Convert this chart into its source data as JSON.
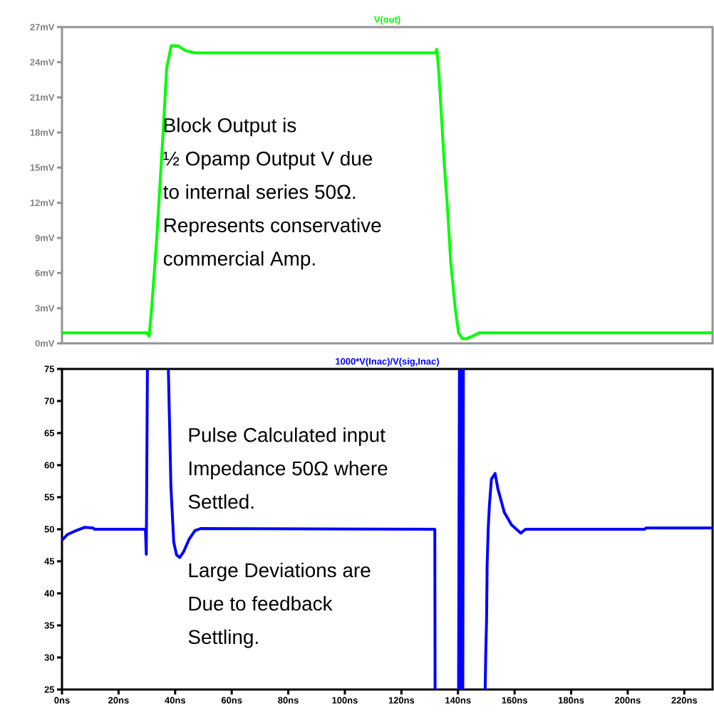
{
  "chart_data": [
    {
      "type": "line",
      "title": "V(out)",
      "xlim": [
        0,
        230
      ],
      "ylim": [
        0,
        27
      ],
      "tick_labels": "y",
      "yticks": [
        {
          "value": 0,
          "label": "0mV"
        },
        {
          "value": 3,
          "label": "3mV"
        },
        {
          "value": 6,
          "label": "6mV"
        },
        {
          "value": 9,
          "label": "9mV"
        },
        {
          "value": 12,
          "label": "12mV"
        },
        {
          "value": 15,
          "label": "15mV"
        },
        {
          "value": 18,
          "label": "18mV"
        },
        {
          "value": 21,
          "label": "21mV"
        },
        {
          "value": 24,
          "label": "24mV"
        },
        {
          "value": 27,
          "label": "27mV"
        }
      ],
      "series": [
        {
          "color": "#00ff00",
          "x": [
            0,
            30,
            30.8,
            31.7,
            33.5,
            35.5,
            37,
            38.6,
            41,
            43.6,
            46.9,
            132,
            132.5,
            133.2,
            135.2,
            136.4,
            137.4,
            139,
            140.2,
            141.5,
            143,
            145,
            147.5,
            230
          ],
          "values": [
            0.9,
            0.9,
            0.6,
            3,
            9,
            17,
            23.5,
            25.4,
            25.4,
            25,
            24.8,
            24.8,
            25.1,
            23.2,
            15.1,
            11.1,
            7,
            3,
            0.9,
            0.4,
            0.4,
            0.6,
            0.9,
            0.9
          ]
        }
      ],
      "annotations": [
        "Block Output is",
        "½ Opamp Output V due",
        "to internal series 50Ω.",
        "Represents conservative",
        "commercial Amp."
      ]
    },
    {
      "type": "line",
      "title": "1000*V(Inac)/V(sig,Inac)",
      "xlim": [
        0,
        230
      ],
      "ylim": [
        25,
        75
      ],
      "xticks": [
        {
          "value": 0,
          "label": "0ns"
        },
        {
          "value": 20,
          "label": "20ns"
        },
        {
          "value": 40,
          "label": "40ns"
        },
        {
          "value": 60,
          "label": "60ns"
        },
        {
          "value": 80,
          "label": "80ns"
        },
        {
          "value": 100,
          "label": "100ns"
        },
        {
          "value": 120,
          "label": "120ns"
        },
        {
          "value": 140,
          "label": "140ns"
        },
        {
          "value": 160,
          "label": "160ns"
        },
        {
          "value": 180,
          "label": "180ns"
        },
        {
          "value": 200,
          "label": "200ns"
        },
        {
          "value": 220,
          "label": "220ns"
        }
      ],
      "yticks": [
        25,
        30,
        35,
        40,
        45,
        50,
        55,
        60,
        65,
        70,
        75
      ],
      "series": [
        {
          "color": "#0000ff",
          "x": [
            0,
            2,
            5,
            8,
            11,
            11.5,
            29.5,
            29.8,
            30.2,
            30.4,
            37.6,
            38,
            38.5,
            39.5,
            40.5,
            41.6,
            43,
            45,
            47,
            49,
            131.8,
            131.9,
            132,
            140.2,
            140.5,
            140.9,
            141.3,
            141.7,
            141.9,
            142.1,
            149.6,
            149.8,
            150.1,
            150.3,
            150.7,
            151.1,
            151.8,
            153.1,
            154.1,
            156.4,
            158.9,
            162.2,
            163.9,
            206,
            206.5,
            230
          ],
          "values": [
            48.3,
            49.2,
            49.8,
            50.3,
            50.2,
            50,
            50,
            46.1,
            75,
            null,
            75,
            67,
            56.7,
            48,
            46,
            45.6,
            46.5,
            48.5,
            49.8,
            50.1,
            50,
            25,
            null,
            25,
            75,
            25,
            75,
            25,
            75,
            null,
            25,
            30.3,
            35.9,
            44.4,
            50.3,
            53.7,
            57.8,
            58.7,
            56.3,
            52.6,
            50.7,
            49.4,
            50,
            50,
            50.2,
            50.2
          ]
        }
      ],
      "annotations": [
        "Pulse Calculated input",
        "Impedance 50Ω where",
        "Settled.",
        "Large Deviations are",
        "Due to feedback",
        "Settling."
      ]
    }
  ]
}
